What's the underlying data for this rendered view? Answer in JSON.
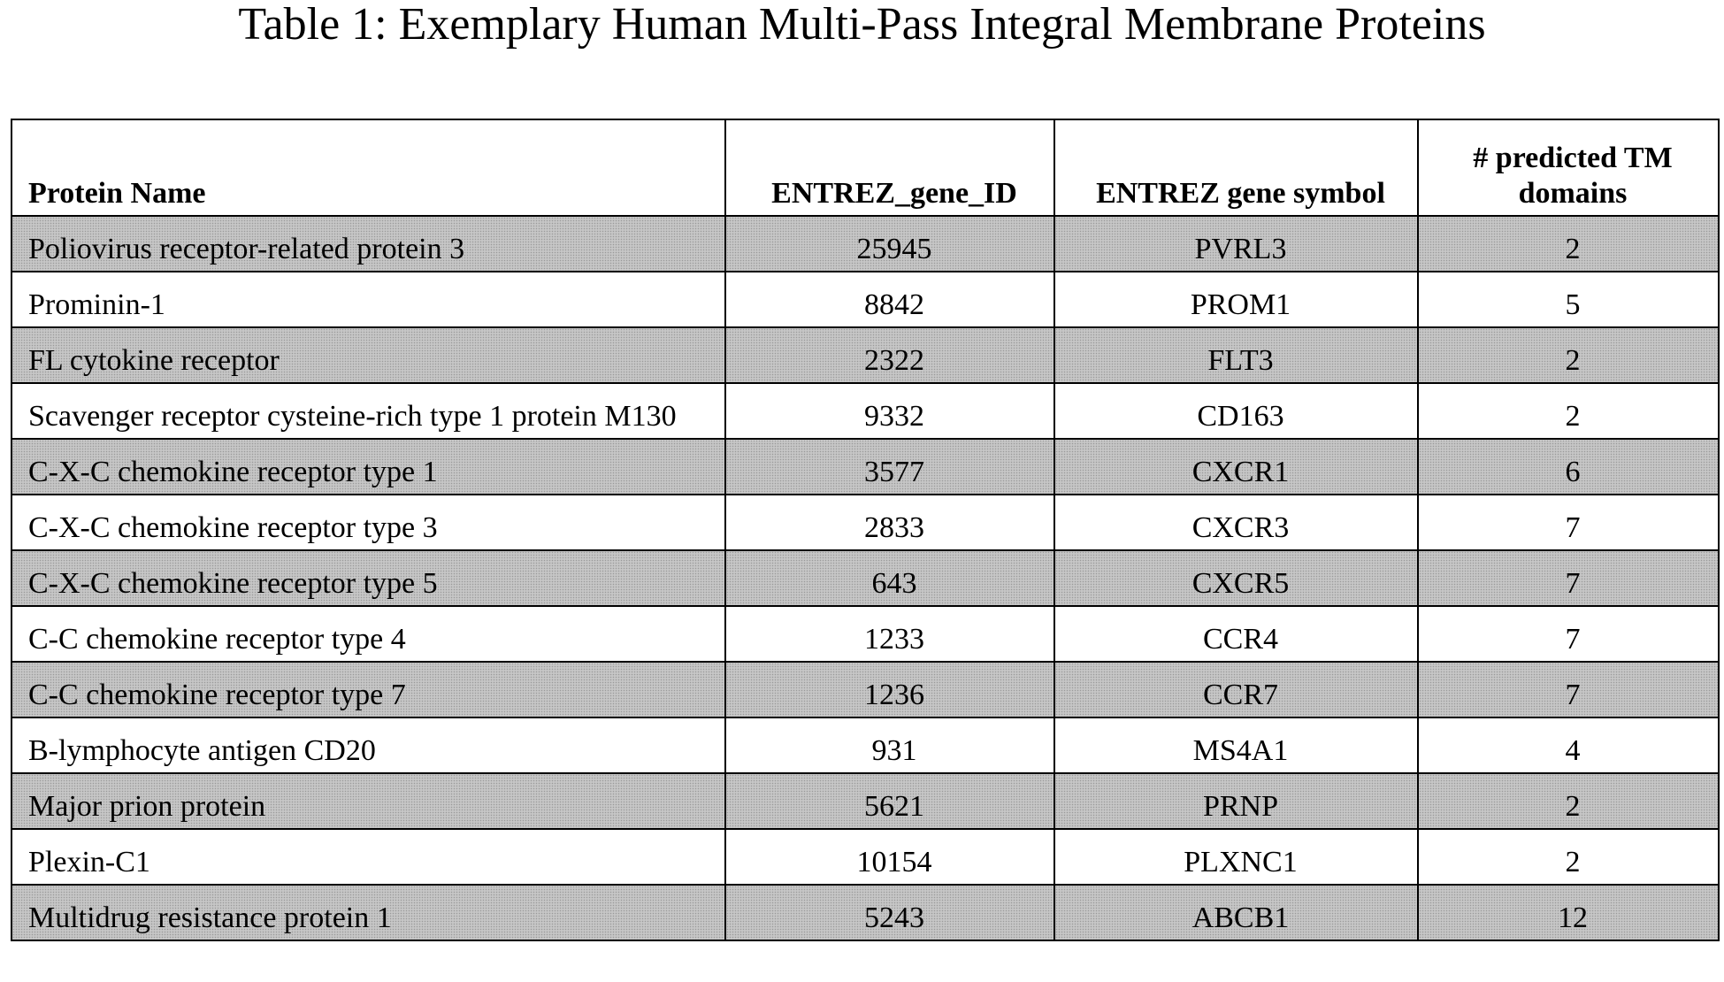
{
  "title": "Table 1: Exemplary Human Multi-Pass Integral Membrane Proteins",
  "table": {
    "columns": [
      "Protein Name",
      "ENTREZ_gene_ID",
      "ENTREZ gene symbol",
      "# predicted TM domains"
    ],
    "rows": [
      [
        "Poliovirus receptor-related protein 3",
        25945,
        "PVRL3",
        2
      ],
      [
        "Prominin-1",
        8842,
        "PROM1",
        5
      ],
      [
        "FL cytokine receptor",
        2322,
        "FLT3",
        2
      ],
      [
        "Scavenger receptor cysteine-rich type 1 protein M130",
        9332,
        "CD163",
        2
      ],
      [
        "C-X-C chemokine receptor type 1",
        3577,
        "CXCR1",
        6
      ],
      [
        "C-X-C chemokine receptor type 3",
        2833,
        "CXCR3",
        7
      ],
      [
        "C-X-C chemokine receptor type 5",
        643,
        "CXCR5",
        7
      ],
      [
        "C-C chemokine receptor type 4",
        1233,
        "CCR4",
        7
      ],
      [
        "C-C chemokine receptor type 7",
        1236,
        "CCR7",
        7
      ],
      [
        "B-lymphocyte antigen CD20",
        931,
        "MS4A1",
        4
      ],
      [
        "Major prion protein",
        5621,
        "PRNP",
        2
      ],
      [
        "Plexin-C1",
        10154,
        "PLXNC1",
        2
      ],
      [
        "Multidrug resistance protein 1",
        5243,
        "ABCB1",
        12
      ]
    ]
  }
}
